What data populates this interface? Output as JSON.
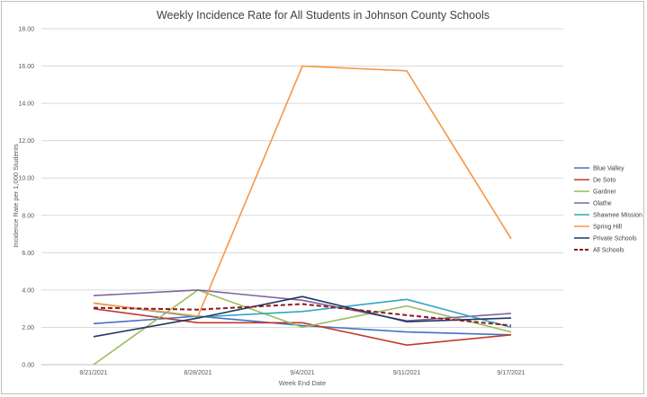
{
  "chart_data": {
    "type": "line",
    "title": "Weekly Incidence Rate for All Students  in Johnson County Schools",
    "xlabel": "Week End Date",
    "ylabel": "Incidence Rate per 1,000 Students",
    "categories": [
      "8/21/2021",
      "8/28/2021",
      "9/4/2021",
      "9/11/2021",
      "9/17/2021"
    ],
    "ylim": [
      0,
      18
    ],
    "yticks": [
      "0.00",
      "2.00",
      "4.00",
      "6.00",
      "8.00",
      "10.00",
      "12.00",
      "14.00",
      "16.00",
      "18.00"
    ],
    "grid": true,
    "legend_position": "right",
    "series": [
      {
        "name": "Blue Valley",
        "color": "#4472c4",
        "dash": false,
        "values": [
          2.2,
          2.6,
          2.1,
          1.75,
          1.6
        ]
      },
      {
        "name": "De Soto",
        "color": "#c0392b",
        "dash": false,
        "values": [
          3.0,
          2.25,
          2.25,
          1.05,
          1.6
        ]
      },
      {
        "name": "Gardner",
        "color": "#9bbb59",
        "dash": false,
        "values": [
          0.0,
          4.0,
          2.0,
          3.15,
          1.75
        ]
      },
      {
        "name": "Olathe",
        "color": "#8064a2",
        "dash": false,
        "values": [
          3.7,
          4.0,
          3.45,
          2.35,
          2.75
        ]
      },
      {
        "name": "Shawnee Mission",
        "color": "#31a6c4",
        "dash": false,
        "values": [
          3.3,
          2.55,
          2.85,
          3.5,
          2.0
        ]
      },
      {
        "name": "Spring Hill",
        "color": "#f79646",
        "dash": false,
        "values": [
          3.3,
          2.6,
          16.0,
          15.75,
          6.75
        ]
      },
      {
        "name": "Private Schools",
        "color": "#1f3864",
        "dash": false,
        "values": [
          1.5,
          2.5,
          3.65,
          2.3,
          2.5
        ]
      },
      {
        "name": "All Schools",
        "color": "#8b1a1a",
        "dash": true,
        "values": [
          3.05,
          2.95,
          3.25,
          2.65,
          2.1
        ]
      }
    ]
  }
}
